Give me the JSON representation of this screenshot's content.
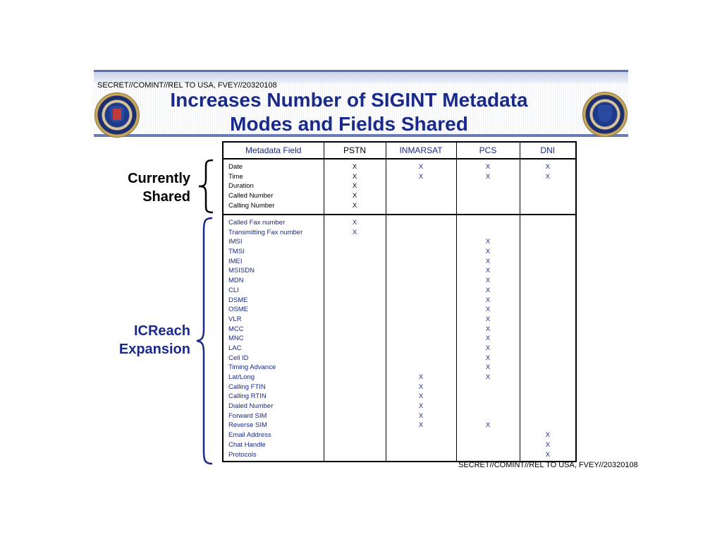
{
  "header": {
    "classification": "SECRET//COMINT//REL TO USA, FVEY//20320108",
    "title_line1": "Increases Number of SIGINT Metadata",
    "title_line2": "Modes and Fields Shared"
  },
  "labels": {
    "currently_line1": "Currently",
    "currently_line2": "Shared",
    "icreach_line1": "ICReach",
    "icreach_line2": "Expansion"
  },
  "table": {
    "headers": [
      "Metadata Field",
      "PSTN",
      "INMARSAT",
      "PCS",
      "DNI"
    ],
    "group1": {
      "fields": [
        "Date",
        "Time",
        "Duration",
        "Called Number",
        "Calling Number"
      ],
      "pstn": [
        "X",
        "X",
        "X",
        "X",
        "X"
      ],
      "inmarsat": [
        "X",
        "X",
        "",
        "",
        ""
      ],
      "pcs": [
        "X",
        "X",
        "",
        "",
        ""
      ],
      "dni": [
        "X",
        "X",
        "",
        "",
        ""
      ]
    },
    "group2": {
      "fields": [
        "Called Fax number",
        "Transmitting Fax number",
        "IMSI",
        "TMSI",
        "IMEI",
        "MSISDN",
        "MDN",
        "CLI",
        "DSME",
        "OSME",
        "VLR",
        "MCC",
        "MNC",
        "LAC",
        "Cell ID",
        "Timing Advance",
        "Lat/Long",
        "Calling FTIN",
        "Calling RTIN",
        "Dialed Number",
        "Forward SIM",
        "Reverse SIM",
        "Email Address",
        "Chat Handle",
        "Protocols"
      ],
      "pstn": [
        "X",
        "X",
        "",
        "",
        "",
        "",
        "",
        "",
        "",
        "",
        "",
        "",
        "",
        "",
        "",
        "",
        "",
        "",
        "",
        "",
        "",
        "",
        "",
        "",
        ""
      ],
      "inmarsat": [
        "",
        "",
        "",
        "",
        "",
        "",
        "",
        "",
        "",
        "",
        "",
        "",
        "",
        "",
        "",
        "",
        "X",
        "X",
        "X",
        "X",
        "X",
        "X",
        "",
        "",
        ""
      ],
      "pcs": [
        "",
        "",
        "X",
        "X",
        "X",
        "X",
        "X",
        "X",
        "X",
        "X",
        "X",
        "X",
        "X",
        "X",
        "X",
        "X",
        "X",
        "",
        "",
        "",
        "",
        "X",
        "",
        "",
        ""
      ],
      "dni": [
        "",
        "",
        "",
        "",
        "",
        "",
        "",
        "",
        "",
        "",
        "",
        "",
        "",
        "",
        "",
        "",
        "",
        "",
        "",
        "",
        "",
        "",
        "X",
        "X",
        "X"
      ]
    }
  },
  "footer": {
    "classification": "SECRET//COMINT//REL TO USA, FVEY//20320108"
  }
}
